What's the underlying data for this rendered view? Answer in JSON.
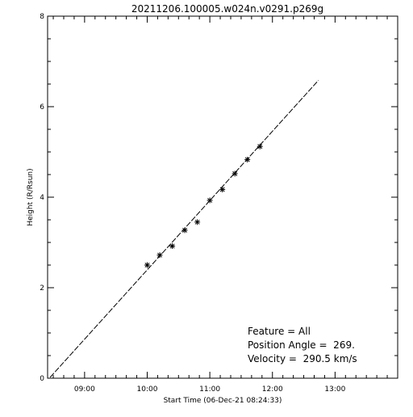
{
  "chart_data": {
    "type": "scatter",
    "title": "20211206.100005.w024n.v0291.p269g",
    "xlabel": "Start Time (06-Dec-21 08:24:33)",
    "ylabel": "Height (R/Rsun)",
    "xlim": [
      "08:24:33",
      "14:00:00"
    ],
    "ylim": [
      0,
      8
    ],
    "x_ticks": [
      "09:00",
      "10:00",
      "11:00",
      "12:00",
      "13:00"
    ],
    "y_ticks": [
      "0",
      "2",
      "4",
      "6",
      "8"
    ],
    "series": [
      {
        "kind": "points",
        "marker": "asterisk",
        "x": [
          "10:00",
          "10:12",
          "10:24",
          "10:36",
          "10:48",
          "11:00",
          "11:12",
          "11:24",
          "11:36",
          "11:48"
        ],
        "y": [
          2.5,
          2.72,
          2.92,
          3.27,
          3.45,
          3.93,
          4.17,
          4.52,
          4.83,
          5.12
        ]
      },
      {
        "kind": "fit-line",
        "style": "dashed",
        "x": [
          "08:27",
          "12:44"
        ],
        "y": [
          0.02,
          6.58
        ]
      }
    ],
    "annotations": [
      "Feature = All",
      "Position Angle =  269.",
      "Velocity =  290.5 km/s"
    ],
    "grid": false
  }
}
